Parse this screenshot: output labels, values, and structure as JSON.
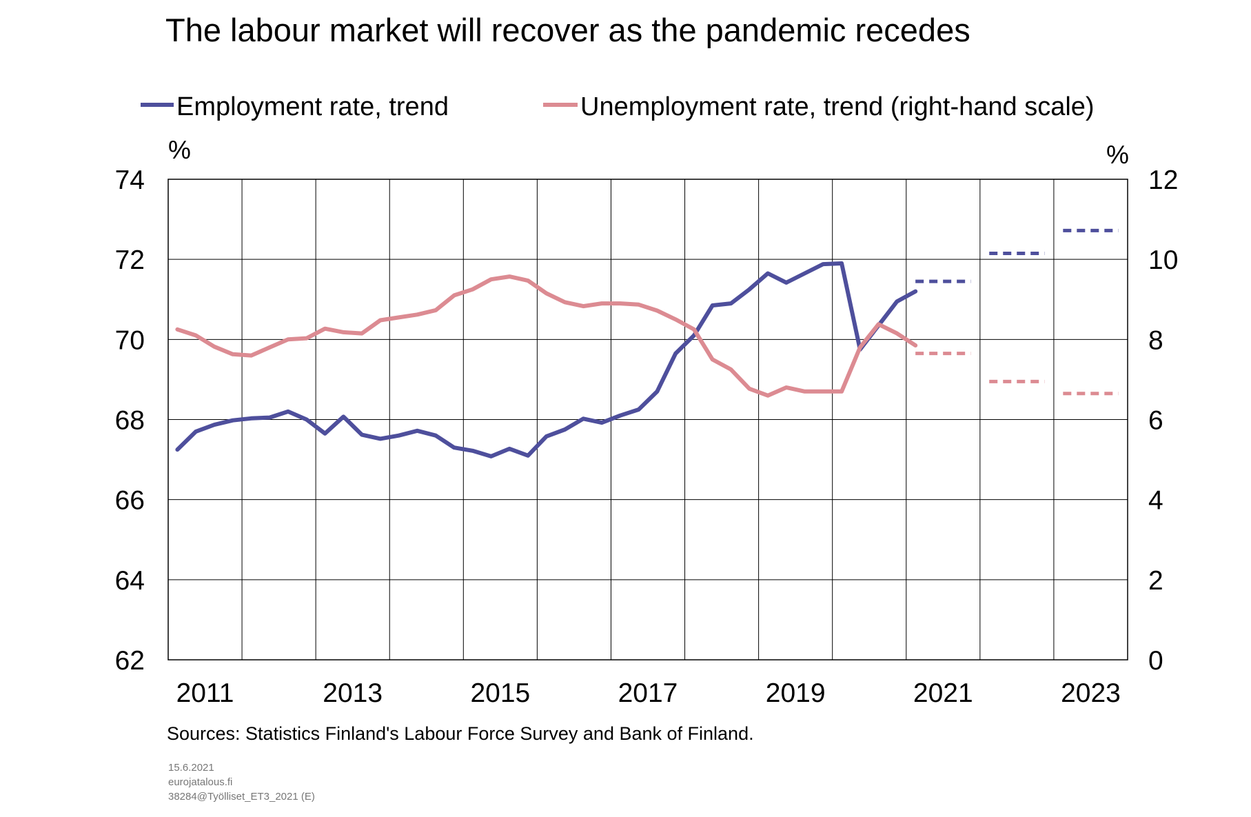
{
  "chart_data": {
    "type": "line",
    "title": "The labour market will recover as the pandemic recedes",
    "y_left_unit": "%",
    "y_right_unit": "%",
    "ylim_left": [
      62,
      74
    ],
    "ylim_right": [
      0,
      12
    ],
    "y_left_ticks": [
      "74",
      "72",
      "70",
      "68",
      "66",
      "64",
      "62"
    ],
    "y_right_ticks": [
      "12",
      "10",
      "8",
      "6",
      "4",
      "2",
      "0"
    ],
    "x_ticks": [
      "2011",
      "2013",
      "2015",
      "2017",
      "2019",
      "2021",
      "2023"
    ],
    "xlim": [
      2011.0,
      2024.0
    ],
    "grid": true,
    "legend_position": "top",
    "series": [
      {
        "name": "Employment rate, trend",
        "axis": "left",
        "color": "#4e4f9c",
        "style": "solid",
        "points": [
          [
            2011.125,
            67.25
          ],
          [
            2011.375,
            67.7
          ],
          [
            2011.625,
            67.87
          ],
          [
            2011.875,
            67.98
          ],
          [
            2012.125,
            68.03
          ],
          [
            2012.375,
            68.05
          ],
          [
            2012.625,
            68.2
          ],
          [
            2012.875,
            68.0
          ],
          [
            2013.125,
            67.65
          ],
          [
            2013.375,
            68.07
          ],
          [
            2013.625,
            67.62
          ],
          [
            2013.875,
            67.52
          ],
          [
            2014.125,
            67.6
          ],
          [
            2014.375,
            67.72
          ],
          [
            2014.625,
            67.6
          ],
          [
            2014.875,
            67.3
          ],
          [
            2015.125,
            67.22
          ],
          [
            2015.375,
            67.08
          ],
          [
            2015.625,
            67.27
          ],
          [
            2015.875,
            67.1
          ],
          [
            2016.125,
            67.58
          ],
          [
            2016.375,
            67.75
          ],
          [
            2016.625,
            68.02
          ],
          [
            2016.875,
            67.92
          ],
          [
            2017.125,
            68.1
          ],
          [
            2017.375,
            68.25
          ],
          [
            2017.625,
            68.7
          ],
          [
            2017.875,
            69.65
          ],
          [
            2018.125,
            70.1
          ],
          [
            2018.375,
            70.85
          ],
          [
            2018.625,
            70.9
          ],
          [
            2018.875,
            71.25
          ],
          [
            2019.125,
            71.65
          ],
          [
            2019.375,
            71.42
          ],
          [
            2019.625,
            71.65
          ],
          [
            2019.875,
            71.88
          ],
          [
            2020.125,
            71.9
          ],
          [
            2020.375,
            69.75
          ],
          [
            2020.625,
            70.35
          ],
          [
            2020.875,
            70.95
          ],
          [
            2021.125,
            71.2
          ]
        ]
      },
      {
        "name": "Unemployment rate, trend (right-hand scale)",
        "axis": "right",
        "color": "#dc8b92",
        "style": "solid",
        "points": [
          [
            2011.125,
            8.25
          ],
          [
            2011.375,
            8.1
          ],
          [
            2011.625,
            7.82
          ],
          [
            2011.875,
            7.63
          ],
          [
            2012.125,
            7.6
          ],
          [
            2012.375,
            7.8
          ],
          [
            2012.625,
            8.0
          ],
          [
            2012.875,
            8.03
          ],
          [
            2013.125,
            8.27
          ],
          [
            2013.375,
            8.18
          ],
          [
            2013.625,
            8.15
          ],
          [
            2013.875,
            8.48
          ],
          [
            2014.125,
            8.55
          ],
          [
            2014.375,
            8.62
          ],
          [
            2014.625,
            8.73
          ],
          [
            2014.875,
            9.1
          ],
          [
            2015.125,
            9.25
          ],
          [
            2015.375,
            9.5
          ],
          [
            2015.625,
            9.57
          ],
          [
            2015.875,
            9.47
          ],
          [
            2016.125,
            9.15
          ],
          [
            2016.375,
            8.93
          ],
          [
            2016.625,
            8.83
          ],
          [
            2016.875,
            8.9
          ],
          [
            2017.125,
            8.9
          ],
          [
            2017.375,
            8.87
          ],
          [
            2017.625,
            8.72
          ],
          [
            2017.875,
            8.5
          ],
          [
            2018.125,
            8.25
          ],
          [
            2018.375,
            7.5
          ],
          [
            2018.625,
            7.25
          ],
          [
            2018.875,
            6.77
          ],
          [
            2019.125,
            6.6
          ],
          [
            2019.375,
            6.8
          ],
          [
            2019.625,
            6.7
          ],
          [
            2019.875,
            6.7
          ],
          [
            2020.125,
            6.7
          ],
          [
            2020.375,
            7.8
          ],
          [
            2020.625,
            8.38
          ],
          [
            2020.875,
            8.15
          ],
          [
            2021.125,
            7.85
          ]
        ]
      },
      {
        "axis": "left",
        "color": "#4e4f9c",
        "style": "dashed",
        "segments": [
          {
            "x": [
              2021.125,
              2021.875
            ],
            "y": 71.45
          },
          {
            "x": [
              2022.125,
              2022.875
            ],
            "y": 72.15
          },
          {
            "x": [
              2023.125,
              2023.875
            ],
            "y": 72.72
          }
        ]
      },
      {
        "axis": "right",
        "color": "#dc8b92",
        "style": "dashed",
        "segments": [
          {
            "x": [
              2021.125,
              2021.875
            ],
            "y": 7.65
          },
          {
            "x": [
              2022.125,
              2022.875
            ],
            "y": 6.95
          },
          {
            "x": [
              2023.125,
              2023.875
            ],
            "y": 6.65
          }
        ]
      }
    ]
  },
  "legend": {
    "employment_label": "Employment rate, trend",
    "unemployment_label": "Unemployment rate, trend (right-hand scale)"
  },
  "footer": {
    "sources": "Sources: Statistics Finland's Labour Force Survey and Bank of Finland.",
    "date": "15.6.2021",
    "site": "eurojatalous.fi",
    "code": "38284@Työlliset_ET3_2021  (E)"
  }
}
